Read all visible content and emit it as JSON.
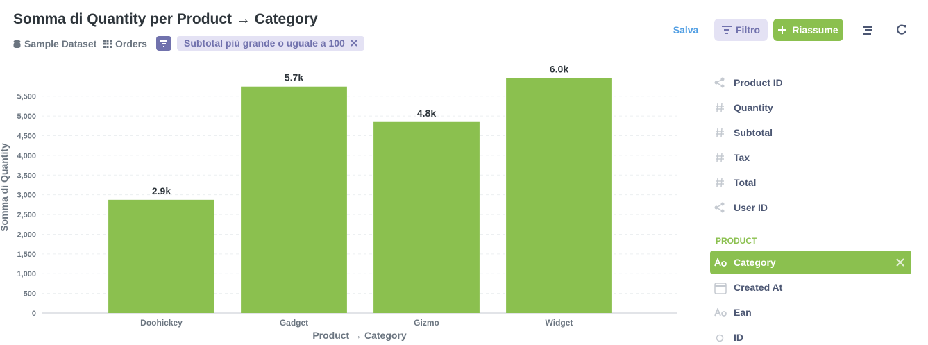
{
  "header": {
    "title": "Somma di Quantity per Product → Category",
    "source": "Sample Dataset",
    "table": "Orders",
    "filter": "Subtotal più grande o uguale a 100",
    "buttons": {
      "save": "Salva",
      "filter": "Filtro",
      "summarize": "Riassume"
    }
  },
  "chart_data": {
    "type": "bar",
    "categories": [
      "Doohickey",
      "Gadget",
      "Gizmo",
      "Widget"
    ],
    "values": [
      2874,
      5747,
      4848,
      5959
    ],
    "value_labels": [
      "2.9k",
      "5.7k",
      "4.8k",
      "6.0k"
    ],
    "color": "#8bc04f",
    "ylim": [
      0,
      6200
    ],
    "yticks": [
      0,
      500,
      {
        "value": 1000,
        "label": "1,000"
      },
      {
        "value": 1500,
        "label": "1,500"
      },
      {
        "value": 2000,
        "label": "2,000"
      },
      {
        "value": 2500,
        "label": "2,500"
      },
      {
        "value": 3000,
        "label": "3,000"
      },
      {
        "value": 3500,
        "label": "3,500"
      },
      {
        "value": 4000,
        "label": "4,000"
      },
      {
        "value": 4500,
        "label": "4,500"
      },
      {
        "value": 5000,
        "label": "5,000"
      },
      {
        "value": 5500,
        "label": "5,500"
      }
    ],
    "grid": true,
    "xlabel": "Product → Category",
    "ylabel": "Somma di Quantity"
  },
  "sidebar": {
    "fields": [
      "Product ID",
      "Quantity",
      "Subtotal",
      "Tax",
      "Total",
      "User ID"
    ],
    "section": "PRODUCT",
    "product_fields": [
      "Category",
      "Created At",
      "Ean",
      "ID"
    ]
  }
}
